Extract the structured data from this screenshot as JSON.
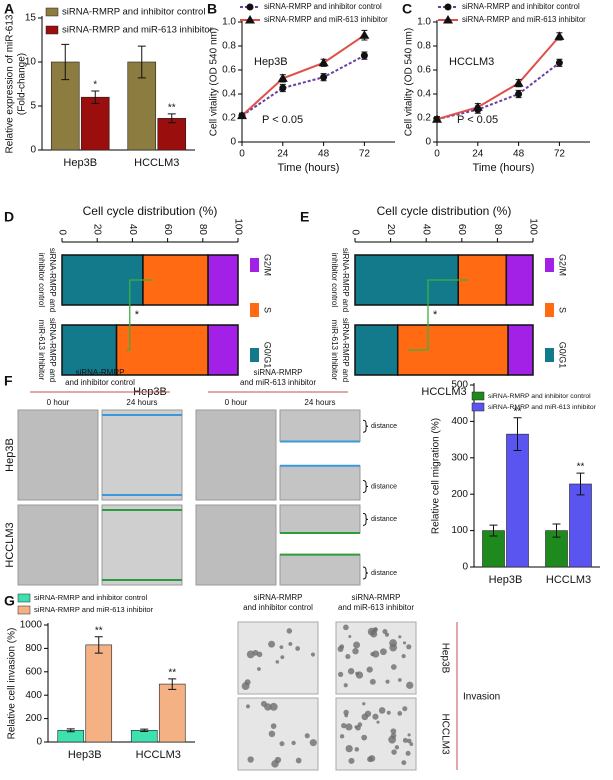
{
  "panel_letters": [
    "A",
    "B",
    "C",
    "D",
    "E",
    "F",
    "G"
  ],
  "chart_data": [
    {
      "type": "bar",
      "categories": [
        "Hep3B",
        "HCCLM3"
      ],
      "y_label": [
        "Relative expression of miR-613",
        "(Fold-change)"
      ],
      "ylim": [
        0,
        15
      ],
      "yticks": [
        0,
        5,
        10,
        15
      ],
      "series": [
        {
          "name": "siRNA-RMRP and inhibitor control",
          "color": "#8c7c40",
          "values": [
            10,
            10
          ],
          "errors": [
            2,
            1.8
          ]
        },
        {
          "name": "siRNA-RMRP and miR-613 inhibitor",
          "color": "#9a0e0e",
          "values": [
            6,
            3.6
          ],
          "errors": [
            0.7,
            0.5
          ],
          "significance": [
            "*",
            "**"
          ]
        }
      ]
    },
    {
      "type": "line",
      "x": [
        0,
        24,
        48,
        72
      ],
      "xlim": [
        0,
        90
      ],
      "xticks": [
        0,
        24,
        48,
        72
      ],
      "ylim": [
        0,
        1
      ],
      "yticks": [
        0,
        0.2,
        0.4,
        0.6,
        0.8,
        {
          "value": 1,
          "label": "1.0"
        }
      ],
      "x_label": "Time (hours)",
      "y_label": [
        "Cell vitality (OD 540 nm)"
      ],
      "subtitle": "Hep3B",
      "annotation": "P < 0.05",
      "series": [
        {
          "name": "siRNA-RMRP and inhibitor control",
          "color": "#6a3fa0",
          "dash": true,
          "marker": "circle",
          "marker_color": "#111111",
          "values": [
            0.22,
            0.45,
            0.54,
            0.72
          ],
          "errors": [
            0.02,
            0.03,
            0.03,
            0.03
          ]
        },
        {
          "name": "siRNA-RMRP and miR-613 inhibitor",
          "color": "#e0504a",
          "dash": false,
          "marker": "triangle",
          "marker_color": "#111111",
          "values": [
            0.22,
            0.53,
            0.66,
            0.89
          ],
          "errors": [
            0.02,
            0.03,
            0.03,
            0.04
          ]
        }
      ]
    },
    {
      "type": "line",
      "x": [
        0,
        24,
        48,
        72
      ],
      "xlim": [
        0,
        90
      ],
      "xticks": [
        0,
        24,
        48,
        72
      ],
      "ylim": [
        0,
        1
      ],
      "yticks": [
        0,
        0.2,
        0.4,
        0.6,
        0.8,
        {
          "value": 1,
          "label": "1.0"
        }
      ],
      "x_label": "Time (hours)",
      "y_label": [
        "Cell vitality (OD 540 nm)"
      ],
      "subtitle": "HCCLM3",
      "annotation": "P < 0.05",
      "series": [
        {
          "name": "siRNA-RMRP and inhibitor control",
          "color": "#6a3fa0",
          "dash": true,
          "marker": "circle",
          "marker_color": "#111111",
          "values": [
            0.19,
            0.27,
            0.4,
            0.66
          ],
          "errors": [
            0.02,
            0.03,
            0.03,
            0.03
          ]
        },
        {
          "name": "siRNA-RMRP and miR-613 inhibitor",
          "color": "#e0504a",
          "dash": false,
          "marker": "triangle",
          "marker_color": "#111111",
          "values": [
            0.19,
            0.29,
            0.49,
            0.88
          ],
          "errors": [
            0.02,
            0.03,
            0.03,
            0.03
          ]
        }
      ]
    },
    {
      "type": "stacked_bar",
      "orientation": "horizontal",
      "title": "Cell cycle distribution (%)",
      "subtitle": "Hep3B",
      "annotation": "*",
      "categories": [
        [
          "siRNA-RMRP and",
          "inhibitor control"
        ],
        [
          "siRNA-RMRP and",
          "miR-613 inhibitor"
        ]
      ],
      "xlim": [
        0,
        100
      ],
      "xticks": [
        0,
        20,
        40,
        60,
        80,
        100
      ],
      "series": [
        {
          "name": "G0/G1",
          "color": "#127a8a",
          "values": [
            46,
            31
          ]
        },
        {
          "name": "S",
          "color": "#ff6a13",
          "values": [
            37,
            52
          ]
        },
        {
          "name": "G2/M",
          "color": "#a321e6",
          "values": [
            17,
            17
          ]
        }
      ]
    },
    {
      "type": "stacked_bar",
      "orientation": "horizontal",
      "title": "Cell cycle distribution (%)",
      "subtitle": "HCCLM3",
      "annotation": "*",
      "categories": [
        [
          "siRNA-RMRP and",
          "inhibitor control"
        ],
        [
          "siRNA-RMRP and",
          "miR-613 inhibitor"
        ]
      ],
      "xlim": [
        0,
        100
      ],
      "xticks": [
        0,
        20,
        40,
        60,
        80,
        100
      ],
      "series": [
        {
          "name": "G0/G1",
          "color": "#127a8a",
          "values": [
            58,
            24
          ]
        },
        {
          "name": "S",
          "color": "#ff6a13",
          "values": [
            27,
            62
          ]
        },
        {
          "name": "G2/M",
          "color": "#a321e6",
          "values": [
            15,
            14
          ]
        }
      ]
    },
    {
      "type": "bar",
      "categories": [
        "Hep3B",
        "HCCLM3"
      ],
      "y_label": [
        "Relative cell migration (%)"
      ],
      "ylim": [
        0,
        500
      ],
      "yticks": [
        0,
        100,
        200,
        300,
        400,
        500
      ],
      "series": [
        {
          "name": "siRNA-RMRP and inhibitor control",
          "color": "#1e8a1e",
          "values": [
            100,
            100
          ],
          "errors": [
            15,
            18
          ]
        },
        {
          "name": "siRNA-RMRP and miR-613 inhibitor",
          "color": "#5a55f0",
          "values": [
            365,
            228
          ],
          "errors": [
            45,
            30
          ],
          "significance": [
            "**",
            "**"
          ]
        }
      ]
    },
    {
      "type": "bar",
      "categories": [
        "Hep3B",
        "HCCLM3"
      ],
      "y_label": [
        "Relative cell invasion (%)"
      ],
      "ylim": [
        0,
        1000
      ],
      "yticks": [
        0,
        200,
        400,
        600,
        800,
        1000
      ],
      "series": [
        {
          "name": "siRNA-RMRP and inhibitor control",
          "color": "#3fe0b0",
          "values": [
            100,
            100
          ],
          "errors": [
            12,
            10
          ]
        },
        {
          "name": "siRNA-RMRP and miR-613 inhibitor",
          "color": "#f4b183",
          "values": [
            830,
            495
          ],
          "errors": [
            70,
            45
          ],
          "significance": [
            "**",
            "**"
          ]
        }
      ]
    }
  ],
  "migration_images": {
    "groups": [
      [
        "siRNA-RMRP",
        "and inhibitor control"
      ],
      [
        "siRNA-RMRP",
        "and miR-613 inhibitor"
      ]
    ],
    "times": [
      "0 hour",
      "24 hours",
      "0 hour",
      "24 hours"
    ],
    "rows": [
      "Hep3B",
      "HCCLM3"
    ],
    "gap_labels": [
      "distance",
      "distance",
      "distance",
      "distance"
    ]
  },
  "invasion_images": {
    "columns": [
      [
        "siRNA-RMRP",
        "and inhibitor control"
      ],
      [
        "siRNA-RMRP",
        "and miR-613 inhibitor"
      ]
    ],
    "rows": [
      "Hep3B",
      "HCCLM3"
    ],
    "label": "Invasion"
  }
}
